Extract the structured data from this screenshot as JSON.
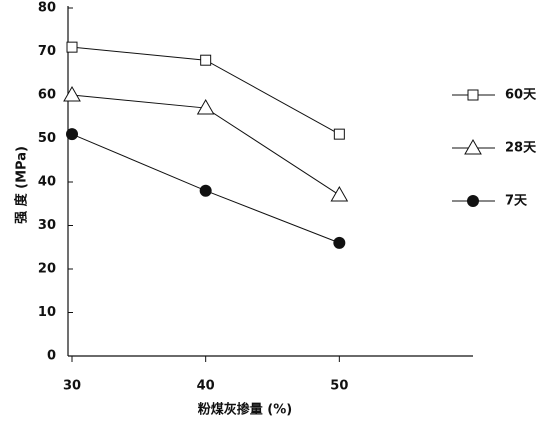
{
  "chart_data": {
    "type": "line",
    "x_label": "粉煤灰掺量 (%)",
    "y_label": "强 度 (MPa)",
    "x": [
      30,
      40,
      50
    ],
    "series": [
      {
        "name": "60天",
        "color": "#111111",
        "marker": "square",
        "values": [
          71,
          68,
          51
        ]
      },
      {
        "name": "28天",
        "color": "#111111",
        "marker": "triangle",
        "values": [
          60,
          57,
          37
        ]
      },
      {
        "name": "7天",
        "color": "#111111",
        "marker": "circle",
        "values": [
          51,
          38,
          26
        ]
      }
    ],
    "xlim": [
      29.7,
      60
    ],
    "xticks": [
      30,
      40,
      50
    ],
    "ylim": [
      0,
      80
    ],
    "yticks": [
      0,
      10,
      20,
      30,
      40,
      50,
      60,
      70,
      80
    ],
    "legend": "right"
  }
}
